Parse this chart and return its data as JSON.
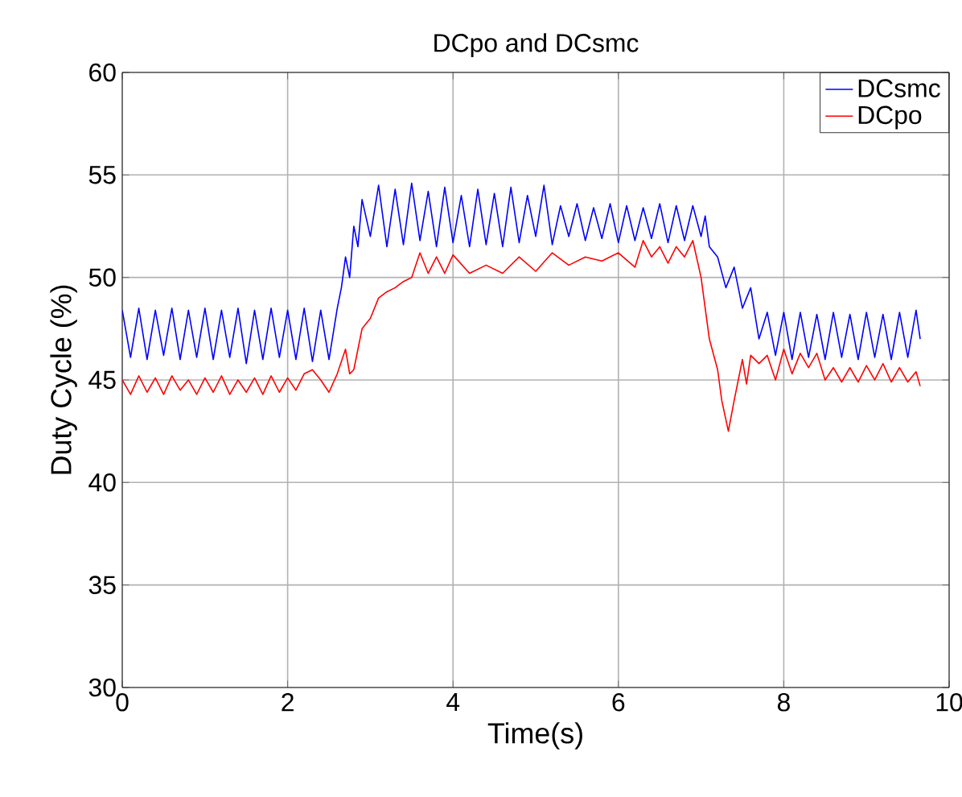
{
  "chart_data": {
    "type": "line",
    "title": "DCpo and DCsmc",
    "xlabel": "Time(s)",
    "ylabel": "Duty Cycle (%)",
    "xlim": [
      0,
      10
    ],
    "ylim": [
      30,
      60
    ],
    "xticks": [
      0,
      2,
      4,
      6,
      8,
      10
    ],
    "yticks": [
      30,
      35,
      40,
      45,
      50,
      55,
      60
    ],
    "grid": true,
    "legend": "top right",
    "series": [
      {
        "name": "DCsmc",
        "color": "#0000ff",
        "x": [
          0,
          0.1,
          0.2,
          0.3,
          0.4,
          0.5,
          0.6,
          0.7,
          0.8,
          0.9,
          1.0,
          1.1,
          1.2,
          1.3,
          1.4,
          1.5,
          1.6,
          1.7,
          1.8,
          1.9,
          2.0,
          2.1,
          2.2,
          2.3,
          2.4,
          2.5,
          2.6,
          2.65,
          2.7,
          2.75,
          2.8,
          2.85,
          2.9,
          3.0,
          3.1,
          3.2,
          3.3,
          3.4,
          3.5,
          3.6,
          3.7,
          3.8,
          3.9,
          4.0,
          4.1,
          4.2,
          4.3,
          4.4,
          4.5,
          4.6,
          4.7,
          4.8,
          4.9,
          5.0,
          5.1,
          5.2,
          5.3,
          5.4,
          5.5,
          5.6,
          5.7,
          5.8,
          5.9,
          6.0,
          6.1,
          6.2,
          6.3,
          6.4,
          6.5,
          6.6,
          6.7,
          6.8,
          6.9,
          7.0,
          7.05,
          7.1,
          7.2,
          7.3,
          7.4,
          7.5,
          7.6,
          7.7,
          7.8,
          7.9,
          8.0,
          8.1,
          8.2,
          8.3,
          8.4,
          8.5,
          8.6,
          8.7,
          8.8,
          8.9,
          9.0,
          9.1,
          9.2,
          9.3,
          9.4,
          9.5,
          9.6,
          9.65
        ],
        "values": [
          48.4,
          46.1,
          48.5,
          46.0,
          48.4,
          46.2,
          48.5,
          46.0,
          48.4,
          46.1,
          48.5,
          46.0,
          48.4,
          46.1,
          48.5,
          45.8,
          48.4,
          46.0,
          48.5,
          46.1,
          48.4,
          46.0,
          48.5,
          45.9,
          48.4,
          46.0,
          48.5,
          49.5,
          51.0,
          50.0,
          52.5,
          51.5,
          53.8,
          52.0,
          54.5,
          51.5,
          54.3,
          51.6,
          54.6,
          51.8,
          54.2,
          51.5,
          54.4,
          51.7,
          54.0,
          51.5,
          54.3,
          51.6,
          54.1,
          51.5,
          54.4,
          51.7,
          54.0,
          52.0,
          54.5,
          51.6,
          53.5,
          52.0,
          53.6,
          51.8,
          53.4,
          51.9,
          53.6,
          51.7,
          53.5,
          51.8,
          53.4,
          51.9,
          53.6,
          51.7,
          53.5,
          51.8,
          53.5,
          52.0,
          53.0,
          51.5,
          51.0,
          49.5,
          50.5,
          48.5,
          49.5,
          47.0,
          48.3,
          46.2,
          48.3,
          46.0,
          48.3,
          46.1,
          48.2,
          46.0,
          48.3,
          46.1,
          48.2,
          46.0,
          48.3,
          46.1,
          48.2,
          46.0,
          48.3,
          46.1,
          48.4,
          47.0
        ]
      },
      {
        "name": "DCpo",
        "color": "#ff0000",
        "x": [
          0,
          0.1,
          0.2,
          0.3,
          0.4,
          0.5,
          0.6,
          0.7,
          0.8,
          0.9,
          1.0,
          1.1,
          1.2,
          1.3,
          1.4,
          1.5,
          1.6,
          1.7,
          1.8,
          1.9,
          2.0,
          2.1,
          2.2,
          2.3,
          2.4,
          2.5,
          2.6,
          2.7,
          2.75,
          2.8,
          2.9,
          3.0,
          3.1,
          3.2,
          3.3,
          3.4,
          3.5,
          3.6,
          3.7,
          3.8,
          3.9,
          4.0,
          4.2,
          4.4,
          4.6,
          4.8,
          5.0,
          5.2,
          5.4,
          5.6,
          5.8,
          6.0,
          6.2,
          6.3,
          6.4,
          6.5,
          6.6,
          6.7,
          6.8,
          6.9,
          7.0,
          7.1,
          7.2,
          7.25,
          7.33,
          7.4,
          7.5,
          7.55,
          7.6,
          7.7,
          7.8,
          7.9,
          8.0,
          8.1,
          8.2,
          8.3,
          8.4,
          8.5,
          8.6,
          8.7,
          8.8,
          8.9,
          9.0,
          9.1,
          9.2,
          9.3,
          9.4,
          9.5,
          9.6,
          9.65
        ],
        "values": [
          45.0,
          44.3,
          45.2,
          44.4,
          45.1,
          44.3,
          45.2,
          44.5,
          45.0,
          44.3,
          45.1,
          44.4,
          45.2,
          44.3,
          45.0,
          44.4,
          45.1,
          44.3,
          45.2,
          44.4,
          45.1,
          44.5,
          45.3,
          45.5,
          45.0,
          44.4,
          45.3,
          46.5,
          45.3,
          45.5,
          47.5,
          48.0,
          49.0,
          49.3,
          49.5,
          49.8,
          50.0,
          51.2,
          50.2,
          51.0,
          50.2,
          51.1,
          50.2,
          50.6,
          50.2,
          51.0,
          50.3,
          51.2,
          50.6,
          51.0,
          50.8,
          51.2,
          50.5,
          51.8,
          51.0,
          51.5,
          50.7,
          51.5,
          51.0,
          51.8,
          50.0,
          47.0,
          45.5,
          44.0,
          42.5,
          44.0,
          46.0,
          44.8,
          46.2,
          45.8,
          46.2,
          45.0,
          46.5,
          45.3,
          46.3,
          45.6,
          46.3,
          45.0,
          45.6,
          44.9,
          45.6,
          44.9,
          45.7,
          45.0,
          45.8,
          44.9,
          45.6,
          44.9,
          45.4,
          44.7
        ]
      }
    ]
  }
}
